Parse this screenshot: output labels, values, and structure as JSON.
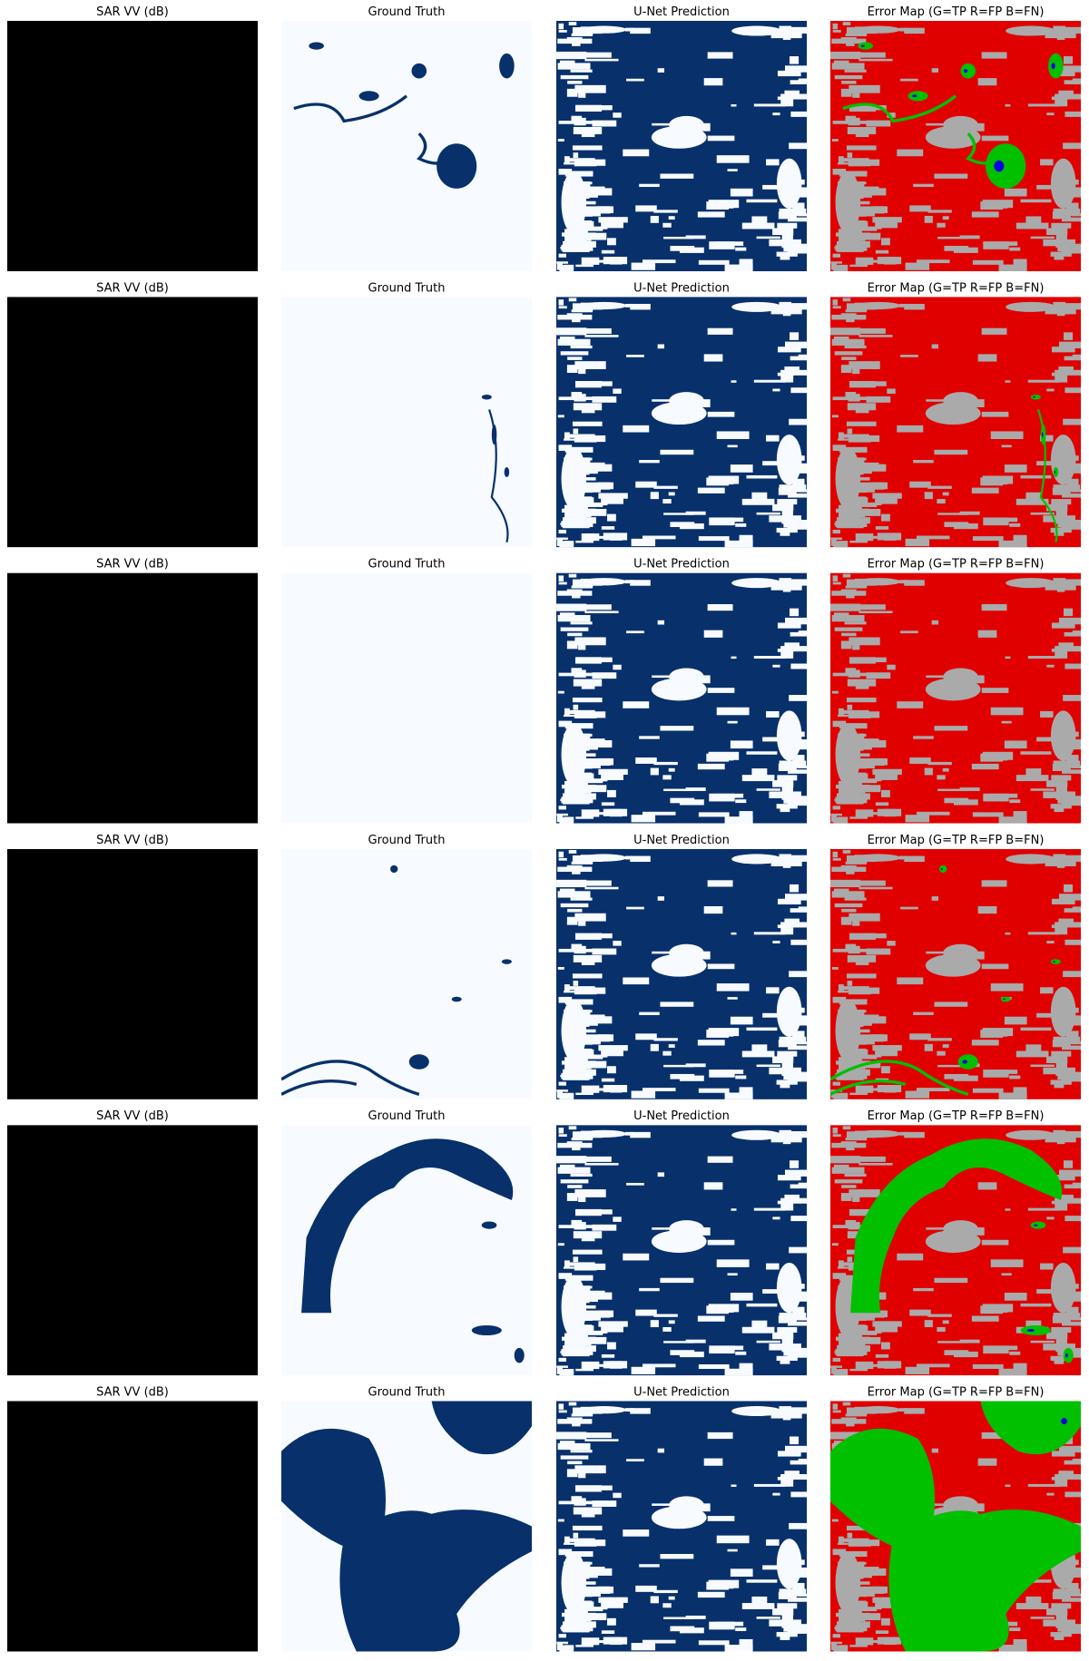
{
  "rows": [
    [
      "SAR VV (dB)",
      "Ground Truth",
      "U-Net Prediction",
      "Error Map (G=TP R=FP B=FN)"
    ],
    [
      "SAR VV (dB)",
      "Ground Truth",
      "U-Net Prediction",
      "Error Map (G=TP R=FP B=FN)"
    ],
    [
      "SAR VV (dB)",
      "Ground Truth",
      "U-Net Prediction",
      "Error Map (G=TP R=FP B=FN)"
    ],
    [
      "SAR VV (dB)",
      "Ground Truth",
      "U-Net Prediction",
      "Error Map (G=TP R=FP B=FN)"
    ],
    [
      "SAR VV (dB)",
      "Ground Truth",
      "U-Net Prediction",
      "Error Map (G=TP R=FP B=FN)"
    ],
    [
      "SAR VV (dB)",
      "Ground Truth",
      "U-Net Prediction",
      "Error Map (G=TP R=FP B=FN)"
    ]
  ]
}
